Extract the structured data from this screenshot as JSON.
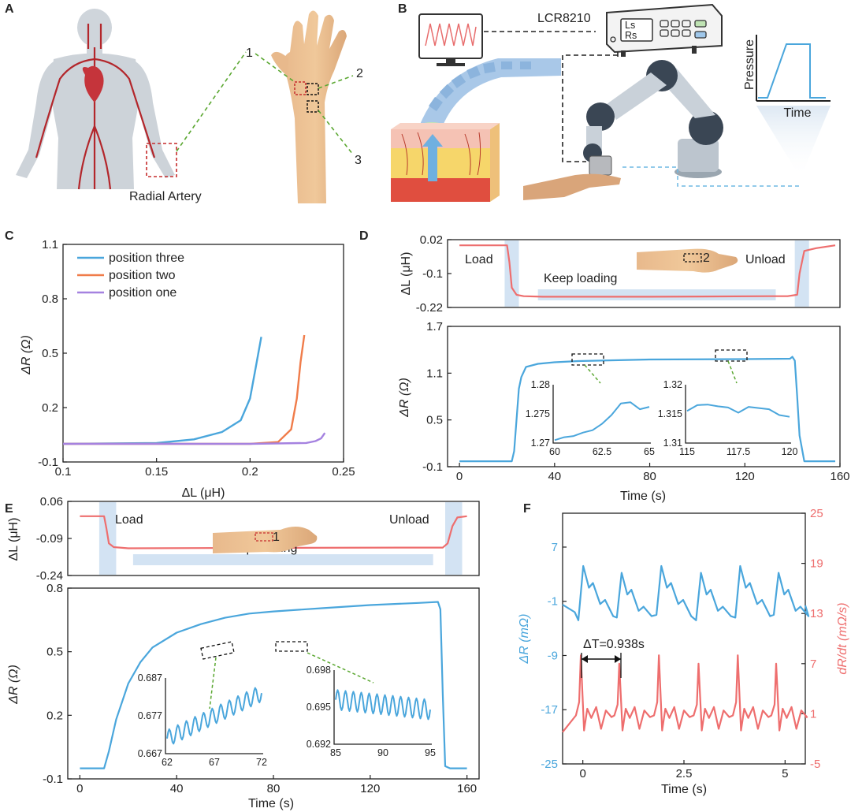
{
  "panels": {
    "A": {
      "letter": "A",
      "labels": [
        "Radial Artery",
        "1",
        "2",
        "3"
      ]
    },
    "B": {
      "letter": "B",
      "instrument": "LCR8210",
      "screen": [
        "Ls",
        "Rs"
      ],
      "inset": {
        "ylabel": "Pressure",
        "xlabel": "Time"
      }
    },
    "C": {
      "letter": "C"
    },
    "D": {
      "letter": "D",
      "load": "Load",
      "keep": "Keep loading",
      "unload": "Unload",
      "position_marker": "2"
    },
    "E": {
      "letter": "E",
      "load": "Load",
      "keep": "Keep loading",
      "unload": "Unload",
      "position_marker": "1"
    },
    "F": {
      "letter": "F",
      "delta_label": "ΔT=0.938s"
    }
  },
  "colors": {
    "blue": "#4aa6dc",
    "red": "#ee6e6e",
    "orange": "#f07c4a",
    "purple": "#a582e0",
    "shade": "#d3e3f3",
    "green_dash": "#5ca833"
  },
  "chart_data": [
    {
      "id": "C",
      "type": "line",
      "xlabel": "ΔL (μH)",
      "ylabel": "ΔR (Ω)",
      "xlim": [
        0.1,
        0.25
      ],
      "ylim": [
        -0.1,
        1.1
      ],
      "xticks": [
        "0.1",
        "0.15",
        "0.2",
        "0.25"
      ],
      "yticks": [
        "-0.1",
        "0.2",
        "0.5",
        "0.8",
        "1.1"
      ],
      "legend_position": "top-left",
      "series": [
        {
          "name": "position three",
          "x": [
            0.1,
            0.15,
            0.17,
            0.185,
            0.195,
            0.2,
            0.203,
            0.206
          ],
          "y": [
            0.0,
            0.005,
            0.025,
            0.065,
            0.13,
            0.25,
            0.42,
            0.59
          ]
        },
        {
          "name": "position two",
          "x": [
            0.1,
            0.2,
            0.215,
            0.222,
            0.225,
            0.227,
            0.229
          ],
          "y": [
            0.0,
            0.0,
            0.01,
            0.08,
            0.25,
            0.45,
            0.6
          ]
        },
        {
          "name": "position one",
          "x": [
            0.1,
            0.2,
            0.23,
            0.235,
            0.238,
            0.24
          ],
          "y": [
            0.0,
            0.0,
            0.005,
            0.015,
            0.03,
            0.06
          ]
        }
      ]
    },
    {
      "id": "D-top",
      "type": "line",
      "ylabel": "ΔL (μH)",
      "ylim": [
        -0.22,
        0.02
      ],
      "xlim": [
        -5,
        160
      ],
      "yticks": [
        "0.02",
        "-0.1",
        "-0.22"
      ],
      "shaded_x": [
        [
          19,
          25
        ],
        [
          141,
          147
        ]
      ],
      "bar_x": [
        33,
        133
      ],
      "series": [
        {
          "name": "",
          "x": [
            0,
            20,
            21,
            22,
            24,
            27,
            35,
            80,
            130,
            138,
            142,
            143,
            145,
            150,
            158
          ],
          "y": [
            0.0,
            0.0,
            -0.06,
            -0.15,
            -0.175,
            -0.18,
            -0.182,
            -0.182,
            -0.18,
            -0.18,
            -0.175,
            -0.1,
            -0.02,
            -0.01,
            0.0
          ]
        }
      ]
    },
    {
      "id": "D-bottom",
      "type": "line",
      "xlabel": "Time (s)",
      "ylabel": "ΔR (Ω)",
      "xlim": [
        -5,
        160
      ],
      "ylim": [
        -0.1,
        1.7
      ],
      "xticks": [
        "0",
        "40",
        "80",
        "120",
        "160"
      ],
      "yticks": [
        "1.7",
        "1.1",
        "0.5",
        "-0.1"
      ],
      "series": [
        {
          "name": "",
          "x": [
            0,
            22,
            23,
            24,
            25,
            26,
            28,
            33,
            40,
            50,
            80,
            120,
            139,
            140,
            141,
            142,
            143,
            145,
            150,
            158
          ],
          "y": [
            -0.03,
            -0.03,
            0.1,
            0.5,
            0.9,
            1.05,
            1.18,
            1.22,
            1.24,
            1.255,
            1.275,
            1.28,
            1.285,
            1.31,
            1.26,
            0.8,
            0.3,
            -0.03,
            -0.03,
            -0.03
          ]
        }
      ],
      "insets": [
        {
          "xlim": [
            60,
            65
          ],
          "ylim": [
            1.27,
            1.28
          ],
          "xticks": [
            "60",
            "62.5",
            "65"
          ],
          "yticks": [
            "1.28",
            "1.275",
            "1.27"
          ],
          "x": [
            60,
            60.5,
            61,
            61.5,
            62,
            62.5,
            63,
            63.5,
            64,
            64.5,
            65
          ],
          "y": [
            1.2705,
            1.271,
            1.2712,
            1.2718,
            1.2722,
            1.2733,
            1.2748,
            1.2768,
            1.277,
            1.2758,
            1.2762
          ]
        },
        {
          "xlim": [
            115,
            120
          ],
          "ylim": [
            1.31,
            1.32
          ],
          "xticks": [
            "115",
            "117.5",
            "120"
          ],
          "yticks": [
            "1.32",
            "1.315",
            "1.31"
          ],
          "x": [
            115,
            115.5,
            116,
            116.5,
            117,
            117.5,
            118,
            118.5,
            119,
            119.5,
            120
          ],
          "y": [
            1.3155,
            1.3165,
            1.3166,
            1.3163,
            1.3161,
            1.3152,
            1.3162,
            1.316,
            1.3158,
            1.3148,
            1.3145
          ]
        }
      ]
    },
    {
      "id": "E-top",
      "type": "line",
      "ylabel": "ΔL (μH)",
      "ylim": [
        -0.24,
        0.06
      ],
      "xlim": [
        -5,
        165
      ],
      "yticks": [
        "0.06",
        "-0.09",
        "-0.24"
      ],
      "shaded_x": [
        [
          8,
          15
        ],
        [
          151,
          158
        ]
      ],
      "bar_x": [
        22,
        146
      ],
      "series": [
        {
          "name": "",
          "x": [
            0,
            10,
            11,
            12,
            14,
            20,
            80,
            140,
            150,
            152,
            154,
            156,
            160
          ],
          "y": [
            0.0,
            0.0,
            -0.05,
            -0.11,
            -0.125,
            -0.13,
            -0.128,
            -0.127,
            -0.127,
            -0.11,
            -0.04,
            -0.005,
            0.0
          ]
        }
      ]
    },
    {
      "id": "E-bottom",
      "type": "line",
      "xlabel": "Time (s)",
      "ylabel": "ΔR (Ω)",
      "xlim": [
        -5,
        165
      ],
      "ylim": [
        -0.1,
        0.8
      ],
      "xticks": [
        "0",
        "40",
        "80",
        "120",
        "160"
      ],
      "yticks": [
        "0.8",
        "0.5",
        "0.2",
        "-0.1"
      ],
      "series": [
        {
          "name": "",
          "x": [
            0,
            10,
            12,
            15,
            20,
            25,
            30,
            40,
            50,
            60,
            70,
            80,
            100,
            120,
            140,
            148,
            149,
            150,
            151,
            153,
            155,
            160
          ],
          "y": [
            -0.05,
            -0.05,
            0.03,
            0.18,
            0.35,
            0.45,
            0.52,
            0.59,
            0.63,
            0.66,
            0.68,
            0.69,
            0.705,
            0.72,
            0.73,
            0.735,
            0.7,
            0.3,
            -0.04,
            -0.05,
            -0.05,
            -0.05
          ]
        }
      ],
      "insets": [
        {
          "xlim": [
            62,
            72
          ],
          "ylim": [
            0.667,
            0.687
          ],
          "xticks": [
            "62",
            "67",
            "72"
          ],
          "yticks": [
            "0.687",
            "0.677",
            "0.667"
          ],
          "trend": [
            0.671,
            0.683
          ],
          "amplitude": 0.0022,
          "cycles": 11
        },
        {
          "xlim": [
            85,
            95
          ],
          "ylim": [
            0.692,
            0.698
          ],
          "xticks": [
            "85",
            "90",
            "95"
          ],
          "yticks": [
            "0.698",
            "0.695",
            "0.692"
          ],
          "trend": [
            0.6956,
            0.6948
          ],
          "amplitude": 0.0008,
          "cycles": 12
        }
      ]
    },
    {
      "id": "F",
      "type": "line",
      "xlabel": "Time (s)",
      "xlim": [
        -0.5,
        5.5
      ],
      "xticks": [
        "0",
        "2.5",
        "5"
      ],
      "left_axis": {
        "label": "ΔR (mΩ)",
        "ylim": [
          -25,
          12
        ],
        "ticks": [
          "7",
          "-1",
          "-9",
          "-17",
          "-25"
        ]
      },
      "right_axis": {
        "label": "dR/dt (mΩ/s)",
        "ylim": [
          -5,
          25
        ],
        "ticks": [
          "25",
          "19",
          "13",
          "7",
          "1",
          "-5"
        ]
      },
      "beat_times": [
        -0.05,
        0.9,
        1.88,
        2.86,
        3.83,
        4.78
      ],
      "series": [
        {
          "name": "",
          "axis": "left",
          "peak": 4.2,
          "trough": -3.8
        },
        {
          "name": "",
          "axis": "right",
          "peak": 8.0,
          "baseline": 0.5
        }
      ]
    }
  ]
}
